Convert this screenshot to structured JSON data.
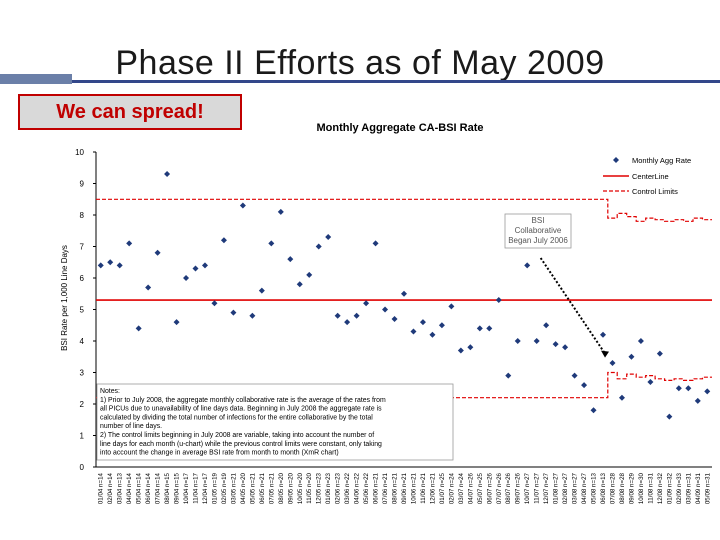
{
  "slide": {
    "title": "Phase II Efforts as of May 2009",
    "callout": "We can spread!"
  },
  "chart_data": {
    "type": "scatter",
    "title": "Monthly Aggregate CA-BSI Rate",
    "ylabel": "BSI Rate per 1,000 Line Days",
    "xlabel": "",
    "ylim": [
      0,
      10
    ],
    "yticks": [
      0,
      1,
      2,
      3,
      4,
      5,
      6,
      7,
      8,
      9,
      10
    ],
    "grid": false,
    "legend_position": "top-right",
    "legend": [
      "Monthly Agg Rate",
      "CenterLine",
      "Control Limits"
    ],
    "colors": {
      "points": "#1f3a7a",
      "centerline": "#e00000",
      "control_limits": "#e00000"
    },
    "categories": [
      "01/04 n=14",
      "02/04 n=14",
      "03/04 n=13",
      "04/04 n=14",
      "05/04 n=14",
      "06/04 n=14",
      "07/04 n=14",
      "08/04 n=15",
      "09/04 n=15",
      "10/04 n=17",
      "11/04 n=17",
      "12/04 n=17",
      "01/05 n=19",
      "02/05 n=19",
      "03/05 n=21",
      "04/05 n=20",
      "05/05 n=21",
      "06/05 n=21",
      "07/05 n=21",
      "08/05 n=20",
      "09/05 n=20",
      "10/05 n=20",
      "11/05 n=20",
      "12/05 n=23",
      "01/06 n=23",
      "02/06 n=23",
      "03/06 n=22",
      "04/06 n=22",
      "05/06 n=22",
      "06/06 n=21",
      "07/06 n=21",
      "08/06 n=21",
      "09/06 n=21",
      "10/06 n=21",
      "11/06 n=21",
      "12/06 n=21",
      "01/07 n=25",
      "02/07 n=24",
      "03/07 n=24",
      "04/07 n=26",
      "05/07 n=25",
      "06/07 n=26",
      "07/07 n=26",
      "08/07 n=26",
      "09/07 n=26",
      "10/07 n=27",
      "11/07 n=27",
      "12/07 n=27",
      "01/08 n=27",
      "02/08 n=27",
      "03/08 n=27",
      "04/08 n=27",
      "05/08 n=13",
      "06/08 n=13",
      "07/08 n=28",
      "08/08 n=28",
      "09/08 n=29",
      "10/08 n=30",
      "11/08 n=31",
      "12/08 n=32",
      "01/09 n=32",
      "02/09 n=33",
      "03/09 n=31",
      "04/09 n=31",
      "05/09 n=31"
    ],
    "series": [
      {
        "name": "Monthly Agg Rate",
        "values": [
          6.4,
          6.5,
          6.4,
          7.1,
          4.4,
          5.7,
          6.8,
          9.3,
          4.6,
          6.0,
          6.3,
          6.4,
          5.2,
          7.2,
          4.9,
          8.3,
          4.8,
          5.6,
          7.1,
          8.1,
          6.6,
          5.8,
          6.1,
          7.0,
          7.3,
          4.8,
          4.6,
          4.8,
          5.2,
          7.1,
          5.0,
          4.7,
          5.5,
          4.3,
          4.6,
          4.2,
          4.5,
          5.1,
          3.7,
          3.8,
          4.4,
          4.4,
          5.3,
          2.9,
          4.0,
          6.4,
          4.0,
          4.5,
          3.9,
          3.8,
          2.9,
          2.6,
          1.8,
          4.2,
          3.3,
          2.2,
          3.5,
          4.0,
          2.7,
          3.6,
          1.6,
          2.5,
          2.5,
          2.1,
          2.4
        ]
      }
    ],
    "centerline": {
      "name": "CenterLine",
      "value": 5.3
    },
    "control_limits": {
      "name": "Control Limits",
      "upper": [
        8.5,
        8.5,
        8.5,
        8.5,
        8.5,
        8.5,
        8.5,
        8.5,
        8.5,
        8.5,
        8.5,
        8.5,
        8.5,
        8.5,
        8.5,
        8.5,
        8.5,
        8.5,
        8.5,
        8.5,
        8.5,
        8.5,
        8.5,
        8.5,
        8.5,
        8.5,
        8.5,
        8.5,
        8.5,
        8.5,
        8.5,
        8.5,
        8.5,
        8.5,
        8.5,
        8.5,
        8.5,
        8.5,
        8.5,
        8.5,
        8.5,
        8.5,
        8.5,
        8.5,
        8.5,
        8.5,
        8.5,
        8.5,
        8.5,
        8.5,
        8.5,
        8.5,
        8.5,
        8.5,
        7.9,
        8.05,
        7.95,
        7.8,
        7.9,
        7.85,
        7.8,
        7.85,
        7.8,
        7.9,
        7.85
      ],
      "lower": [
        2.2,
        2.2,
        2.2,
        2.2,
        2.2,
        2.2,
        2.2,
        2.2,
        2.2,
        2.2,
        2.2,
        2.2,
        2.2,
        2.2,
        2.2,
        2.2,
        2.2,
        2.2,
        2.2,
        2.2,
        2.2,
        2.2,
        2.2,
        2.2,
        2.2,
        2.2,
        2.2,
        2.2,
        2.2,
        2.2,
        2.2,
        2.2,
        2.2,
        2.2,
        2.2,
        2.2,
        2.2,
        2.2,
        2.2,
        2.2,
        2.2,
        2.2,
        2.2,
        2.2,
        2.2,
        2.2,
        2.2,
        2.2,
        2.2,
        2.2,
        2.2,
        2.2,
        2.2,
        2.2,
        3.0,
        2.8,
        2.95,
        2.85,
        2.9,
        2.8,
        2.75,
        2.8,
        2.75,
        2.8,
        2.85
      ]
    },
    "annotations": [
      {
        "lines": [
          "BSI",
          "Collaborative",
          "Began July 2006"
        ],
        "arrow_from_index": 46,
        "arrow_to_index": 53
      },
      {
        "lines": [
          "Notes:",
          "1) Prior to July 2008, the aggregate monthly collaborative rate is the average of the rates from",
          "all PICUs due to unavailability of line days data. Beginning in July 2008 the aggregate rate is",
          "calculated by dividing the total number of infections for the entire collaborative by the total",
          "number of line days.",
          "2) The control limits beginning in July 2008 are variable, taking into account the number of",
          "line days for each month (u-chart) while the previous control limits were constant, only taking",
          "into account the change in average BSI rate from month to month (XmR chart)"
        ]
      }
    ]
  }
}
